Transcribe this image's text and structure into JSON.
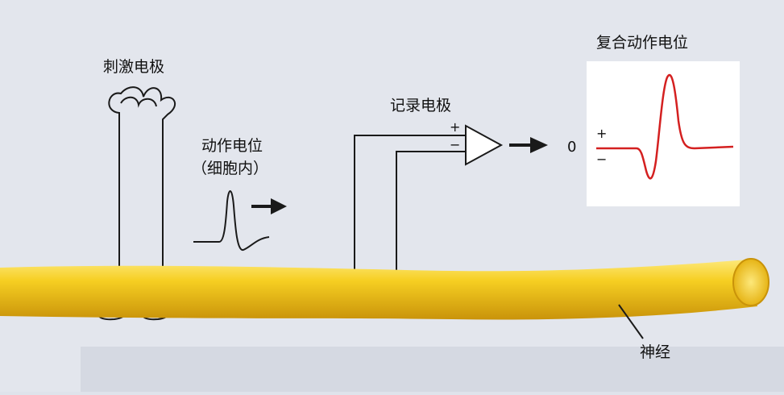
{
  "diagram": {
    "stimulating_electrode": "刺激电极",
    "action_potential_line1": "动作电位",
    "action_potential_line2": "（细胞内）",
    "recording_electrode": "记录电极",
    "compound_action_potential": "复合动作电位",
    "nerve": "神经",
    "amp_plus": "+",
    "amp_minus": "−",
    "zero_label": "0",
    "trace_plus": "+",
    "trace_minus": "−"
  },
  "colors": {
    "background": "#dfe3eb",
    "nerve_fill": "#f3c61a",
    "nerve_highlight": "#fde87a",
    "nerve_shadow": "#c9930a",
    "trace_red": "#d42020",
    "line": "#1a1a1a",
    "panel": "#ffffff"
  }
}
